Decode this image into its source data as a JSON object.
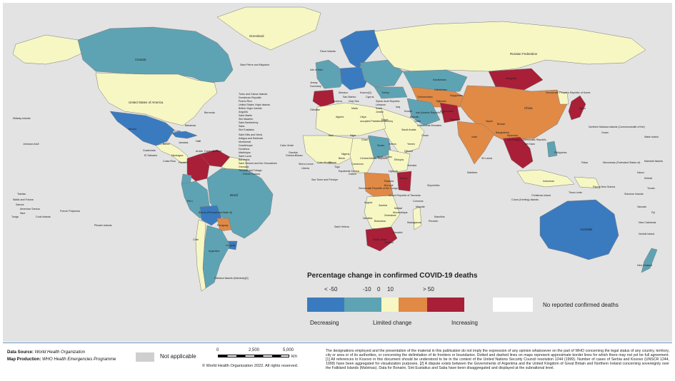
{
  "legend": {
    "title": "Percentage change in confirmed COVID-19 deaths",
    "ticks": [
      "< -50",
      "-10",
      "0",
      "10",
      "> 50"
    ],
    "categories": [
      "Decreasing",
      "Limited change",
      "Increasing"
    ],
    "no_report_label": "No reported confirmed deaths",
    "colors": {
      "strong_decrease": "#3a7bbf",
      "decrease": "#5ea3b3",
      "limited": "#f7f7c4",
      "increase": "#e08a46",
      "strong_increase": "#a81f37",
      "no_report": "#ffffff",
      "not_applicable": "#cfcfcf",
      "ocean": "#e3e3e3"
    }
  },
  "footer": {
    "data_source_label": "Data Source:",
    "data_source": "World Health Organization",
    "map_production_label": "Map Production:",
    "map_production": "WHO Health Emergencies Programme",
    "not_applicable": "Not applicable",
    "scale": {
      "zero": "0",
      "mid": "2,500",
      "max": "5,000",
      "unit": "km"
    },
    "copyright": "© World Health Organization 2022. All rights reserved.",
    "disclaimer": "The designations employed and the presentation of the material in this publication do not imply the expression of any opinion whatsoever on the part of WHO concerning the legal status of any country, territory, city or area or of its authorities, or concerning the delimitation of its frontiers or boundaries. Dotted and dashed lines on maps represent approximate border lines for which there may not yet be full agreement. [1] All references to Kosovo in this document should be understood to be in the context of the United Nations Security Council resolution 1244 (1999). Number of cases of Serbia and Kosovo (UNSCR 1244, 1999) have been aggregated for visualization purposes. [2] A dispute exists between the Governments of Argentina and the United Kingdom of Great Britain and Northern Ireland concerning sovereignty over the Falkland Islands (Malvinas). Data for Bonaire, Sint Eustatius and Saba have been disaggregated and displayed at the subnational level."
  },
  "regions": {
    "greenland": "limited",
    "canada": "decrease",
    "usa": "limited",
    "alaska": "limited",
    "mexico": "strong_decrease",
    "central_america": "limited",
    "cuba": "strong_decrease",
    "colombia": "strong_increase",
    "venezuela": "strong_increase",
    "peru": "decrease",
    "bolivia": "strong_decrease",
    "brazil": "decrease",
    "paraguay": "increase",
    "uruguay": "strong_decrease",
    "argentina": "decrease",
    "chile": "limited",
    "guianas": "limited",
    "ecuador": "decrease",
    "scandinavia": "strong_decrease",
    "western_europe": "decrease",
    "iberia": "strong_increase",
    "central_europe": "strong_decrease",
    "eastern_europe": "decrease",
    "russia": "limited",
    "north_africa": "limited",
    "west_africa": "limited",
    "central_africa": "limited",
    "sudan": "decrease",
    "east_africa": "limited",
    "kenya": "strong_increase",
    "congo": "increase",
    "southern_africa": "limited",
    "south_africa": "strong_increase",
    "madagascar": "limited",
    "arabia": "limited",
    "iran": "decrease",
    "turkey": "decrease",
    "kazakhstan": "decrease",
    "central_asia": "increase",
    "mongolia": "strong_increase",
    "china": "increase",
    "india": "increase",
    "afghanistan": "strong_increase",
    "southeast_asia": "strong_increase",
    "japan": "strong_increase",
    "korea": "limited",
    "indonesia": "limited",
    "philippines": "decrease",
    "papua": "limited",
    "australia": "strong_decrease",
    "new_zealand": "decrease"
  },
  "labels": [
    "Greenland",
    "Canada",
    "United States of America",
    "Saint Pierre and Miquelon",
    "Bermuda",
    "Turks and Caicos Islands",
    "Dominican Republic",
    "Puerto Rico",
    "United States Virgin Islands",
    "British Virgin Islands",
    "Anguilla",
    "Saint Martin",
    "Sint Maarten",
    "Saint Barthelemy",
    "Saba",
    "Sint Eustatius",
    "Saint Kitts and Nevis",
    "Antigua and Barbuda",
    "Montserrat",
    "Guadeloupe",
    "Dominica",
    "Martinique",
    "Saint Lucia",
    "Barbados",
    "Saint Vincent and the Grenadines",
    "Grenada",
    "Trinidad and Tobago",
    "French Guiana",
    "Bahamas",
    "Mexico",
    "Cuba",
    "Jamaica",
    "Haiti",
    "Belize",
    "Guatemala",
    "El Salvador",
    "Nicaragua",
    "Costa Rica",
    "Panama",
    "Aruba",
    "Curacao",
    "Bonaire",
    "Brazil",
    "Bolivia (Plurinational State of)",
    "Peru",
    "Paraguay",
    "Uruguay",
    "Argentina",
    "Chile",
    "Falkland Islands (Malvinas)[2]",
    "Midway Islands",
    "Johnston Atoll",
    "Tokelau",
    "Wallis and Futuna",
    "Samoa",
    "American Samoa",
    "Niue",
    "Cook Islands",
    "French Polynesia",
    "Pitcairn Islands",
    "Tonga",
    "Faroe Islands",
    "Isle of Man",
    "Jersey",
    "Guernsey",
    "Gibraltar",
    "Monaco",
    "San Marino",
    "Andorra",
    "Holy See",
    "Malta",
    "Kosovo[1]",
    "Russian Federation",
    "Kazakhstan",
    "Mongolia",
    "China",
    "Democratic People's Republic of Korea",
    "Japan",
    "India",
    "Afghanistan",
    "Pakistan",
    "Nepal",
    "Bhutan",
    "Bangladesh",
    "Myanmar",
    "Lao People's Democratic Republic",
    "Viet Nam",
    "Sri Lanka",
    "Maldives",
    "Philippines",
    "Indonesia",
    "Timor-Leste",
    "Papua New Guinea",
    "Australia",
    "New Zealand",
    "Christmas Island",
    "Cocos (Keeling) Islands",
    "Palau",
    "Guam",
    "Northern Mariana Islands (Commonwealth of the)",
    "Wake Island",
    "Micronesia (Federated States of)",
    "Marshall Islands",
    "Nauru",
    "Kiribati",
    "Tuvalu",
    "Solomon Islands",
    "Vanuatu",
    "Fiji",
    "New Caledonia",
    "Norfolk Island",
    "Algeria",
    "Libya",
    "Egypt",
    "Mali",
    "Niger",
    "Chad",
    "Sudan",
    "Nigeria",
    "Ethiopia",
    "Kenya",
    "Democratic Republic of the Congo",
    "United Republic of Tanzania",
    "Angola",
    "Zambia",
    "Namibia",
    "Botswana",
    "South Africa",
    "Madagascar",
    "Mozambique",
    "Seychelles",
    "Comoros",
    "Mauritius",
    "Reunion",
    "Mayotte",
    "Saint Helena",
    "Sao Tome and Principe",
    "Cabo Verde",
    "Gambia",
    "Guinea-Bissau",
    "Sierra Leone",
    "Liberia",
    "Cote d'Ivoire",
    "Ghana",
    "Togo",
    "Benin",
    "Cameroon",
    "Gabon",
    "Equatorial Guinea",
    "Central African Republic",
    "South Sudan",
    "Uganda",
    "Rwanda",
    "Burundi",
    "Malawi",
    "Zimbabwe",
    "Lesotho",
    "Eswatini",
    "Somalia",
    "Djibouti",
    "Eritrea",
    "Yemen",
    "Oman",
    "Saudi Arabia",
    "United Arab Emirates",
    "Qatar",
    "Bahrain",
    "Kuwait",
    "Iraq",
    "Syrian Arab Republic",
    "Lebanon",
    "Israel",
    "Jordan",
    "occupied Palestinian territory",
    "Cyprus",
    "Turkey",
    "Iran (Islamic Republic of)",
    "Turkmenistan",
    "Uzbekistan",
    "Tajikistan",
    "Kyrgyzstan"
  ]
}
